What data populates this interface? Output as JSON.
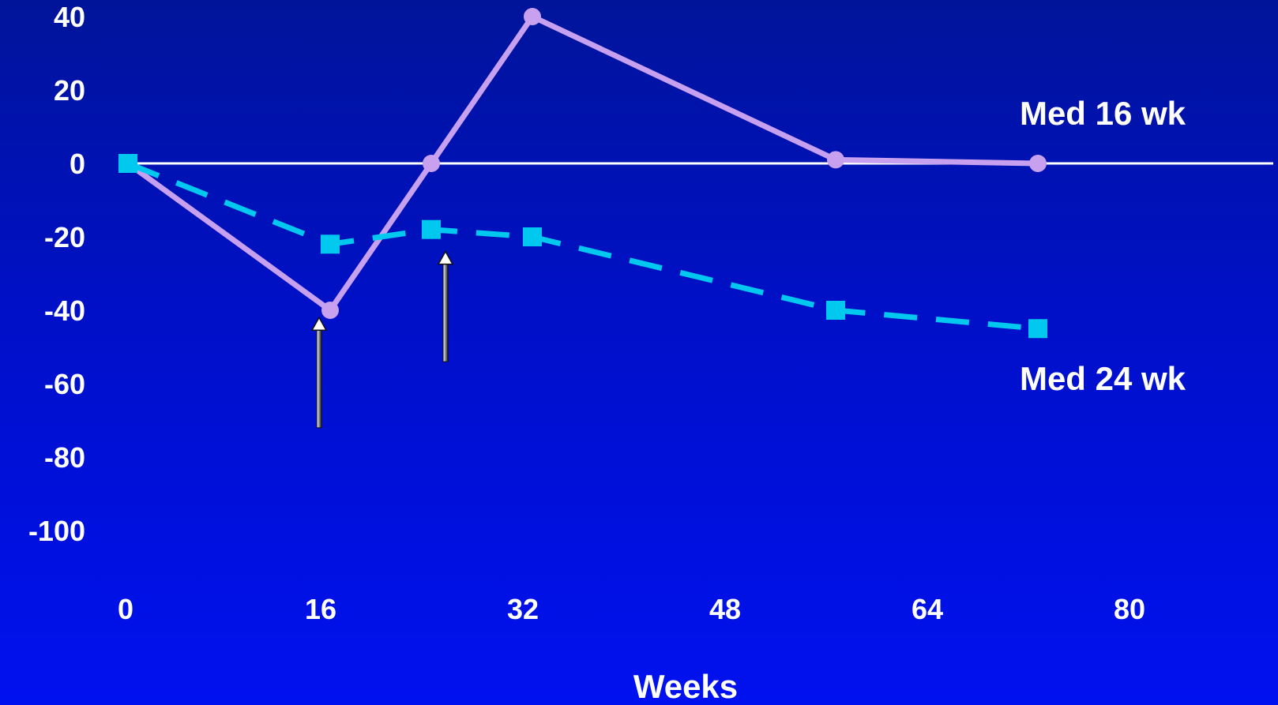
{
  "chart_data": {
    "type": "line",
    "title": "",
    "xlabel": "Weeks",
    "ylabel": "",
    "xlim": [
      0,
      80
    ],
    "ylim": [
      -100,
      40
    ],
    "x_ticks": [
      "0",
      "16",
      "32",
      "48",
      "64",
      "80"
    ],
    "y_ticks": [
      "40",
      "20",
      "0",
      "-20",
      "-40",
      "-60",
      "-80",
      "-100"
    ],
    "grid": false,
    "zero_line": true,
    "series": [
      {
        "name": "Med 16 wk",
        "color": "#c8a0f0",
        "marker": "circle",
        "line_style": "solid",
        "points": [
          {
            "x": 0,
            "y": 0
          },
          {
            "x": 16,
            "y": -40
          },
          {
            "x": 24,
            "y": 0
          },
          {
            "x": 32,
            "y": 40
          },
          {
            "x": 56,
            "y": 1
          },
          {
            "x": 72,
            "y": 0
          }
        ]
      },
      {
        "name": "Med 24 wk",
        "color": "#00c8ee",
        "marker": "square",
        "line_style": "dashed",
        "points": [
          {
            "x": 0,
            "y": 0
          },
          {
            "x": 16,
            "y": -22
          },
          {
            "x": 24,
            "y": -18
          },
          {
            "x": 32,
            "y": -20
          },
          {
            "x": 56,
            "y": -40
          },
          {
            "x": 72,
            "y": -45
          }
        ]
      }
    ],
    "annotations": [
      {
        "type": "arrow",
        "x": 15,
        "y_from": -72,
        "y_to": -42
      },
      {
        "type": "arrow",
        "x": 25,
        "y_from": -54,
        "y_to": -24
      }
    ]
  }
}
